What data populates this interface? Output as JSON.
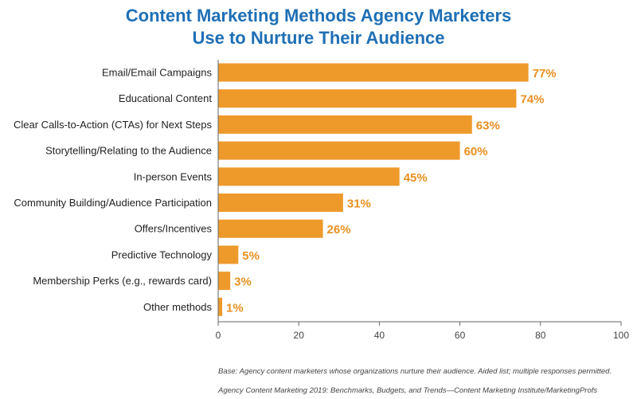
{
  "title_line1": "Content Marketing Methods Agency Marketers",
  "title_line2": "Use to Nurture Their Audience",
  "footer_base": "Base: Agency content marketers whose organizations nurture their audience. Aided list; multiple responses permitted.",
  "footer_source": "Agency Content Marketing 2019: Benchmarks, Budgets, and Trends—Content Marketing Institute/MarketingProfs",
  "colors": {
    "bar": "#ee9a2b",
    "label": "#e8901f",
    "title": "#1f6fb5",
    "axis": "#666666"
  },
  "chart_data": {
    "type": "bar",
    "orientation": "horizontal",
    "categories": [
      "Email/Email Campaigns",
      "Educational Content",
      "Clear Calls-to-Action (CTAs) for Next Steps",
      "Storytelling/Relating to the Audience",
      "In-person Events",
      "Community Building/Audience Participation",
      "Offers/Incentives",
      "Predictive Technology",
      "Membership Perks (e.g., rewards card)",
      "Other methods"
    ],
    "values": [
      77,
      74,
      63,
      60,
      45,
      31,
      26,
      5,
      3,
      1
    ],
    "value_labels": [
      "77%",
      "74%",
      "63%",
      "60%",
      "45%",
      "31%",
      "26%",
      "5%",
      "3%",
      "1%"
    ],
    "xlim": [
      0,
      100
    ],
    "xticks": [
      0,
      20,
      40,
      60,
      80,
      100
    ],
    "grid": false
  }
}
